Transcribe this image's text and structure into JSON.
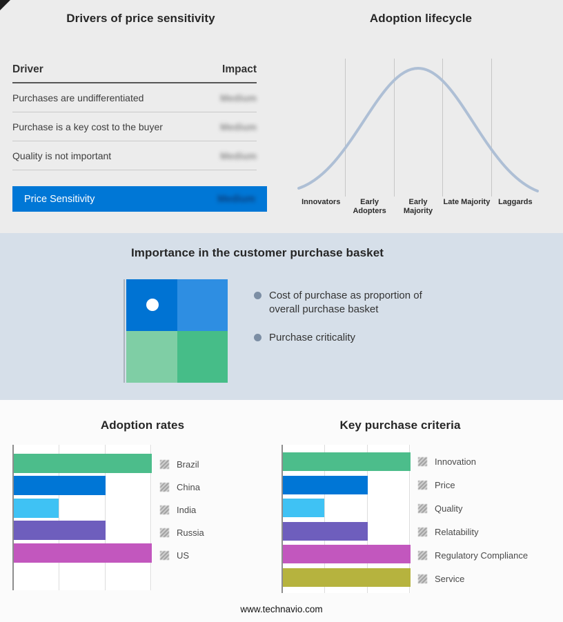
{
  "page": {
    "footer": "www.technavio.com"
  },
  "drivers_panel": {
    "title": "Drivers of price sensitivity",
    "columns": {
      "driver": "Driver",
      "impact": "Impact"
    },
    "rows": [
      {
        "driver": "Purchases are undifferentiated",
        "impact": "Medium"
      },
      {
        "driver": "Purchase is a key cost to the buyer",
        "impact": "Medium"
      },
      {
        "driver": "Quality is not important",
        "impact": "Medium"
      }
    ],
    "summary": {
      "label": "Price Sensitivity",
      "impact": "Medium"
    },
    "accent_color": "#0077d6",
    "impact_values_blurred": true
  },
  "basket_panel": {
    "title": "Importance in the customer purchase basket",
    "bullets": [
      "Cost of purchase as proportion of overall purchase basket",
      "Purchase criticality"
    ],
    "quadrant_colors": [
      "#0073d3",
      "#2e8ee2",
      "#7fcea5",
      "#46bd88"
    ],
    "band_color": "#d6dfe9"
  },
  "chart_data": [
    {
      "type": "line",
      "title": "Adoption lifecycle",
      "categories": [
        "Innovators",
        "Early Adopters",
        "Early Majority",
        "Late Majority",
        "Laggards"
      ],
      "values": [
        0.15,
        0.7,
        1.0,
        0.7,
        0.15
      ],
      "ylim": [
        0,
        1
      ],
      "line_color": "#aebfd5",
      "grid": "vertical stage dividers only",
      "legend": "none"
    },
    {
      "type": "bar",
      "title": "Adoption rates",
      "orientation": "horizontal",
      "categories": [
        "Brazil",
        "China",
        "India",
        "Russia",
        "US"
      ],
      "values": [
        3,
        2,
        1,
        2,
        3
      ],
      "xlim": [
        0,
        3
      ],
      "colors": [
        "#4cbd8b",
        "#0076d6",
        "#3fc2f4",
        "#6e5ebd",
        "#c257be"
      ],
      "legend_position": "right",
      "value_labels": "none shown; lengths estimated from gridlines"
    },
    {
      "type": "bar",
      "title": "Key purchase criteria",
      "orientation": "horizontal",
      "categories": [
        "Innovation",
        "Price",
        "Quality",
        "Relatability",
        "Regulatory Compliance",
        "Service"
      ],
      "values": [
        3,
        2,
        1,
        2,
        3,
        3
      ],
      "xlim": [
        0,
        3
      ],
      "colors": [
        "#4cbd8b",
        "#0076d6",
        "#3fc2f4",
        "#6e5ebd",
        "#c257be",
        "#b6b33e"
      ],
      "legend_position": "right",
      "value_labels": "none shown; lengths estimated from gridlines"
    }
  ]
}
